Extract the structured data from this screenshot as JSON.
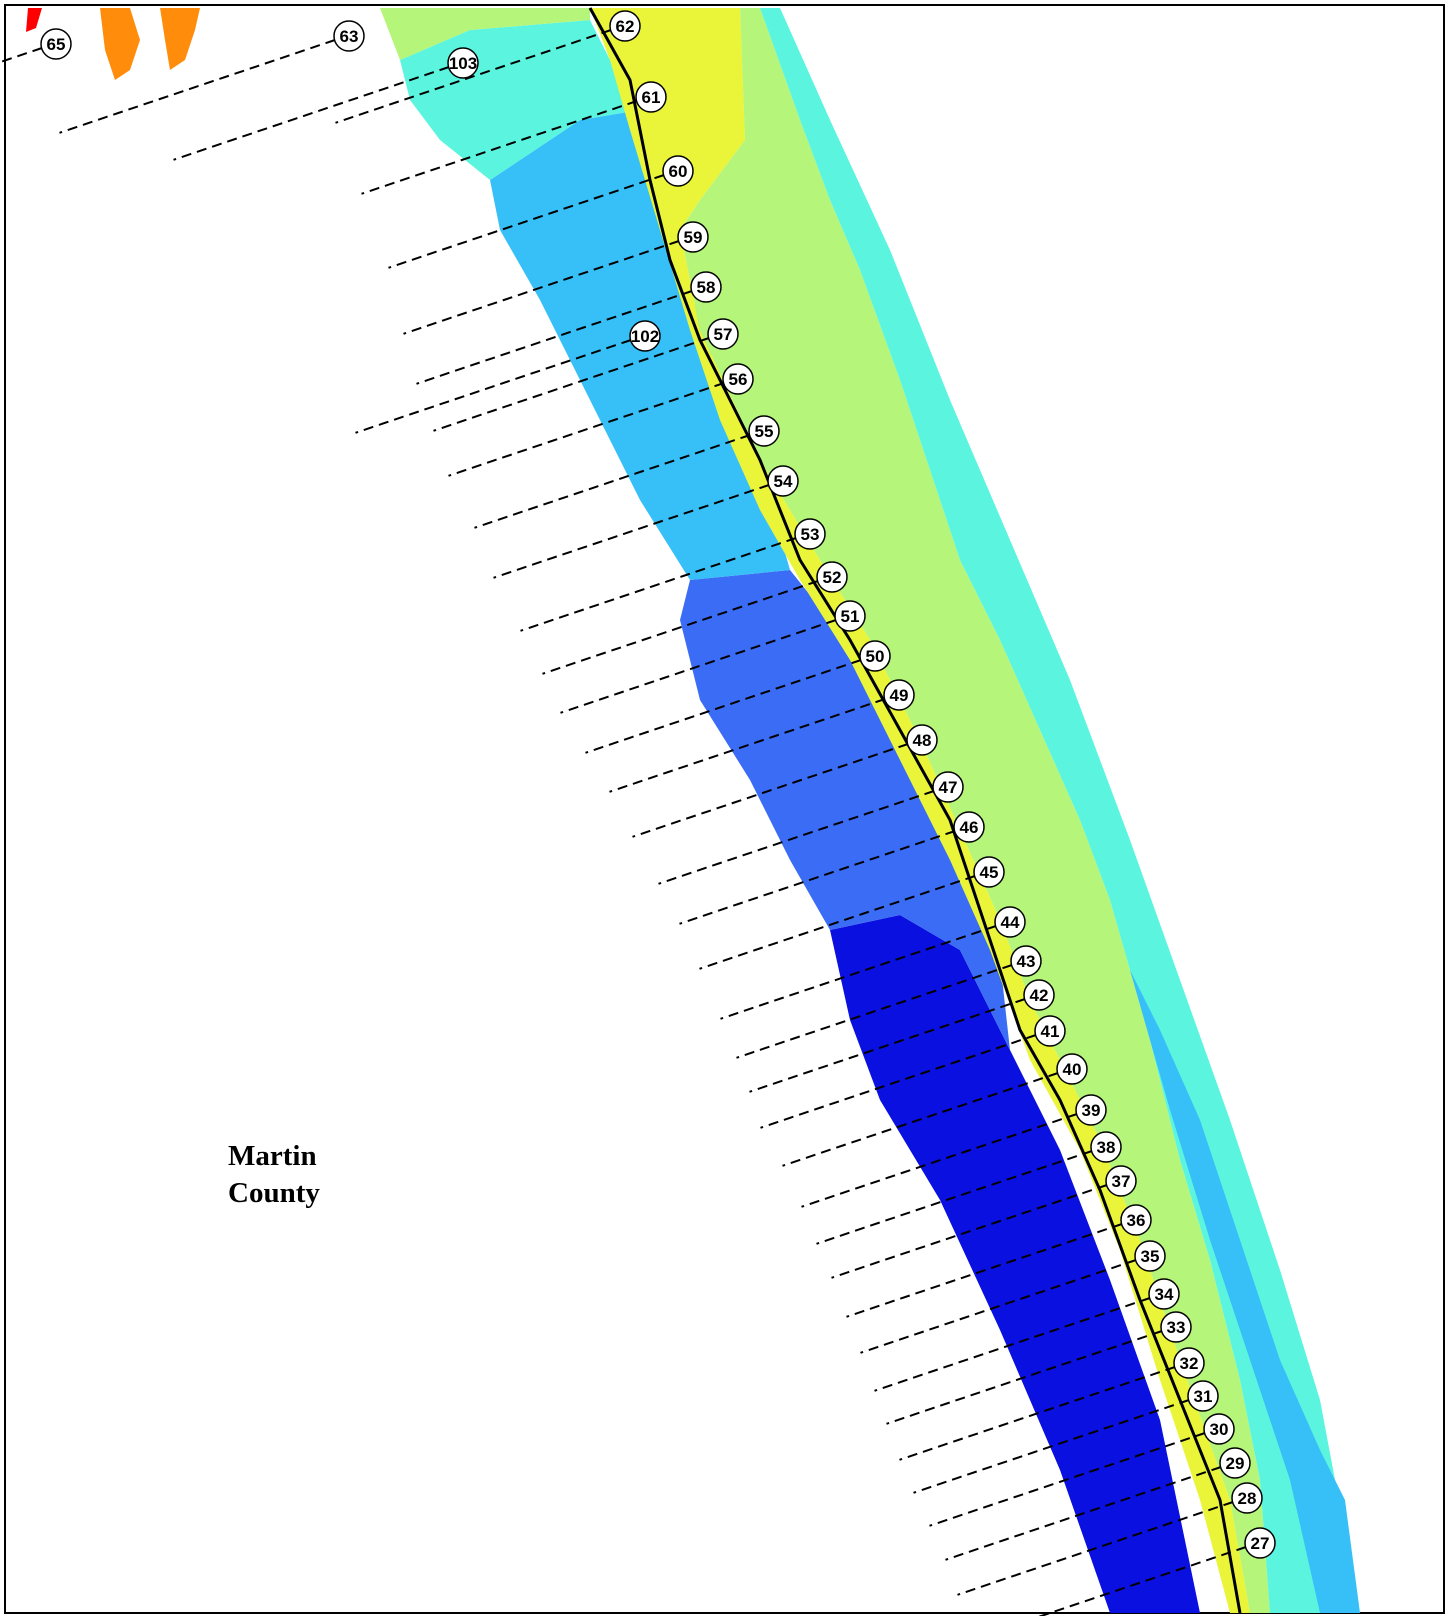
{
  "county_label": {
    "line1": "Martin",
    "line2": "County"
  },
  "colors": {
    "zone_deep": "#0a10e0",
    "zone_blue": "#3a6cf5",
    "zone_sky": "#37c0f8",
    "zone_aqua": "#5bf5df",
    "zone_lime": "#b5f57a",
    "zone_yellow": "#eaf53a",
    "zone_orange": "#ff8c0a",
    "shoreline": "#000000",
    "transect": "#000000"
  },
  "transect_markers": [
    "65",
    "63",
    "62",
    "103",
    "61",
    "60",
    "59",
    "58",
    "102",
    "57",
    "56",
    "55",
    "54",
    "53",
    "52",
    "51",
    "50",
    "49",
    "48",
    "47",
    "46",
    "45",
    "44",
    "43",
    "42",
    "41",
    "40",
    "39",
    "38",
    "37",
    "36",
    "35",
    "34",
    "33",
    "32",
    "31",
    "30",
    "29",
    "28",
    "27"
  ]
}
